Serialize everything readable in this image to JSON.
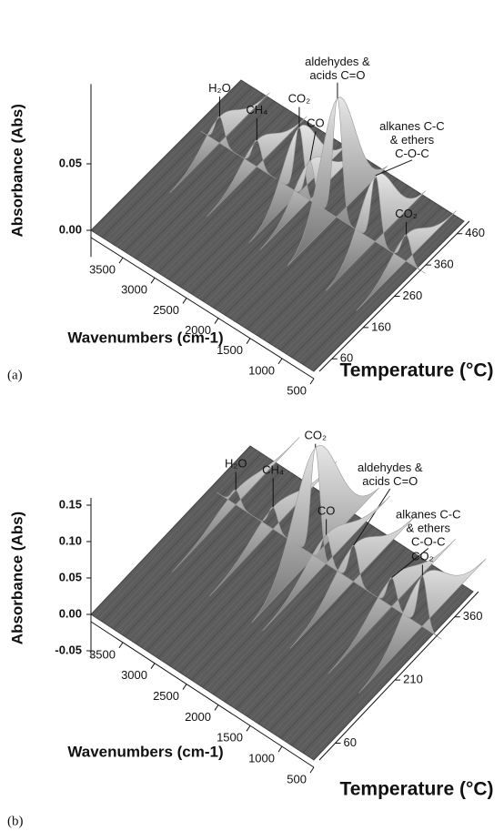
{
  "chart_data": [
    {
      "type": "surface3d",
      "panel_label": "(a)",
      "z_label": "Absorbance (Abs)",
      "x_label": "Wavenumbers (cm-1)",
      "y_label": "Temperature (°C)",
      "xlim": [
        4000,
        500
      ],
      "xticks": [
        3500,
        3000,
        2500,
        2000,
        1500,
        1000,
        500
      ],
      "ylim": [
        20,
        500
      ],
      "yticks": [
        60,
        160,
        260,
        360,
        460
      ],
      "zlim": [
        -0.02,
        0.11
      ],
      "zticks": [
        {
          "value": 0,
          "label": "0.00"
        },
        {
          "value": 0.05,
          "label": "0.05"
        }
      ],
      "color": "#9a9a9a",
      "peaks": [
        {
          "label": [
            "H₂O"
          ],
          "wavenumber": 3600,
          "temperature": 350,
          "absorbance": 0.02
        },
        {
          "label": [
            "CH₄"
          ],
          "wavenumber": 3015,
          "temperature": 350,
          "absorbance": 0.02
        },
        {
          "label": [
            "CO₂"
          ],
          "wavenumber": 2350,
          "temperature": 350,
          "absorbance": 0.05
        },
        {
          "label": [
            "CO"
          ],
          "wavenumber": 2180,
          "temperature": 350,
          "absorbance": 0.03
        },
        {
          "label": [
            "aldehydes &",
            "acids C=O"
          ],
          "wavenumber": 1750,
          "temperature": 350,
          "absorbance": 0.09
        },
        {
          "label": [
            "alkanes C-C",
            "& ethers",
            "C-O-C"
          ],
          "wavenumber": 1150,
          "temperature": 350,
          "absorbance": 0.05
        },
        {
          "label": [
            "CO₂"
          ],
          "wavenumber": 670,
          "temperature": 350,
          "absorbance": 0.02
        }
      ]
    },
    {
      "type": "surface3d",
      "panel_label": "(b)",
      "z_label": "Absorbance (Abs)",
      "x_label": "Wavenumbers (cm-1)",
      "y_label": "Temperature (°C)",
      "xlim": [
        4000,
        500
      ],
      "xticks": [
        3500,
        3000,
        2500,
        2000,
        1500,
        1000,
        500
      ],
      "ylim": [
        20,
        420
      ],
      "yticks": [
        60,
        210,
        360
      ],
      "zlim": [
        -0.06,
        0.16
      ],
      "zticks": [
        {
          "value": -0.05,
          "label": "-0.05"
        },
        {
          "value": 0,
          "label": "0.00"
        },
        {
          "value": 0.05,
          "label": "0.05"
        },
        {
          "value": 0.1,
          "label": "0.10"
        },
        {
          "value": 0.15,
          "label": "0.15"
        }
      ],
      "color": "#9a9a9a",
      "peaks": [
        {
          "label": [
            "H₂O"
          ],
          "wavenumber": 3600,
          "temperature": 320,
          "absorbance": 0.02
        },
        {
          "label": [
            "CH₄"
          ],
          "wavenumber": 3015,
          "temperature": 320,
          "absorbance": 0.03
        },
        {
          "label": [
            "CO₂"
          ],
          "wavenumber": 2350,
          "temperature": 320,
          "absorbance": 0.15
        },
        {
          "label": [
            "aldehydes &",
            "acids C=O"
          ],
          "wavenumber": 1750,
          "temperature": 320,
          "absorbance": 0.05
        },
        {
          "label": [
            "CO"
          ],
          "wavenumber": 2180,
          "temperature": 320,
          "absorbance": 0.04
        },
        {
          "label": [
            "alkanes C-C",
            "& ethers",
            "C-O-C"
          ],
          "wavenumber": 1150,
          "temperature": 320,
          "absorbance": 0.04
        },
        {
          "label": [
            "CO₂"
          ],
          "wavenumber": 670,
          "temperature": 320,
          "absorbance": 0.07
        }
      ]
    }
  ]
}
